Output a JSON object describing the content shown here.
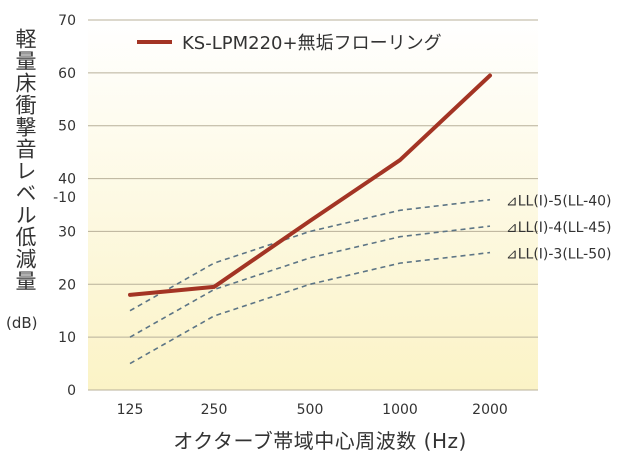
{
  "chart_data": {
    "type": "line",
    "xlabel": "オクターブ帯域中心周波数 (Hz)",
    "ylabel": "軽量床衝撃音レベル低減量",
    "yunit": "(dB)",
    "categories": [
      "125",
      "250",
      "500",
      "1000",
      "2000"
    ],
    "ylim": [
      0,
      70
    ],
    "yticks": [
      "0",
      "10",
      "20",
      "30",
      "40",
      "50",
      "60",
      "70"
    ],
    "extra_tick": {
      "value": 36.5,
      "label": "-10"
    },
    "grid": true,
    "legend_position": "top-left",
    "series": [
      {
        "name": "KS-LPM220+無垢フローリング",
        "values": [
          18,
          19.5,
          32,
          43.5,
          59.5
        ],
        "color": "#a33424",
        "style": "solid"
      }
    ],
    "reference_curves": [
      {
        "label": "⊿LL(I)-5(LL-40)",
        "values": [
          15,
          24,
          30,
          34,
          36
        ],
        "color": "#5d7585"
      },
      {
        "label": "⊿LL(I)-4(LL-45)",
        "values": [
          10,
          19,
          25,
          29,
          31
        ],
        "color": "#5d7585"
      },
      {
        "label": "⊿LL(I)-3(LL-50)",
        "values": [
          5,
          14,
          20,
          24,
          26
        ],
        "color": "#5d7585"
      }
    ],
    "colors": {
      "grid": "#b8b09a",
      "background_top": "#ffffff",
      "background_bottom": "#fbf3c6"
    }
  }
}
